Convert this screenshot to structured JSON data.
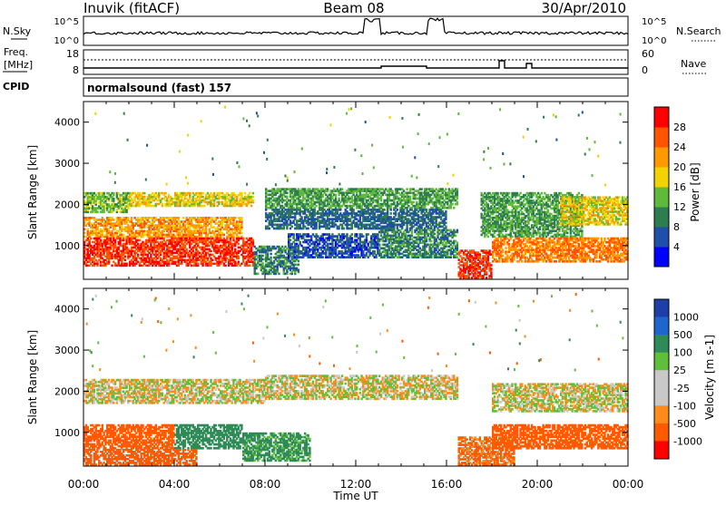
{
  "header": {
    "station": "Inuvik (fitACF)",
    "beam": "Beam 08",
    "date": "30/Apr/2010"
  },
  "params": {
    "nsky_label": "N.Sky",
    "nsky_ticks": [
      "10^5",
      "10^0"
    ],
    "nsearch_label": "N.Search",
    "nsearch_ticks": [
      "10^5",
      "10^0"
    ],
    "freq_label_1": "Freq.",
    "freq_label_2": "[MHz]",
    "freq_ticks": [
      "18",
      "8"
    ],
    "nave_label": "Nave",
    "nave_ticks": [
      "60",
      "0"
    ],
    "cpid_label": "CPID",
    "cpid_text": "normalsound (fast) 157"
  },
  "colors": {
    "power": [
      "#0000ff",
      "#1f4fa8",
      "#2e7d4f",
      "#5fba3c",
      "#f2d200",
      "#ff9900",
      "#ff5500",
      "#ff0000"
    ],
    "velocity": [
      "#ff0000",
      "#ff5a00",
      "#ff8c1a",
      "#c8c8c8",
      "#c8c8c8",
      "#5fbf3a",
      "#2e8b57",
      "#1f66cc",
      "#1e3fa8"
    ]
  },
  "chart_data": [
    {
      "type": "heatmap",
      "title": "",
      "xlabel": "Time UT",
      "ylabel": "Slant Range [km]",
      "x_ticks": [
        "00:00",
        "04:00",
        "08:00",
        "12:00",
        "16:00",
        "20:00",
        "00:00"
      ],
      "x_range_hours": [
        0,
        24
      ],
      "y_ticks": [
        1000,
        2000,
        3000,
        4000
      ],
      "ylim": [
        180,
        4500
      ],
      "colorbar_label": "Power [dB]",
      "colorbar_ticks": [
        "4",
        "8",
        "12",
        "16",
        "20",
        "24",
        "28"
      ],
      "colorbar_range": [
        0,
        32
      ],
      "regions": [
        {
          "t": [
            0,
            2.0
          ],
          "r": [
            1800,
            2300
          ],
          "v": 14
        },
        {
          "t": [
            2.0,
            7.5
          ],
          "r": [
            1950,
            2300
          ],
          "v": 18
        },
        {
          "t": [
            0,
            7.0
          ],
          "r": [
            1200,
            1700
          ],
          "v": 22
        },
        {
          "t": [
            0,
            7.5
          ],
          "r": [
            500,
            1200
          ],
          "v": 28
        },
        {
          "t": [
            7.5,
            9.5
          ],
          "r": [
            300,
            1000
          ],
          "v": 10
        },
        {
          "t": [
            8.0,
            16.5
          ],
          "r": [
            1900,
            2400
          ],
          "v": 12
        },
        {
          "t": [
            8.0,
            16.0
          ],
          "r": [
            1400,
            1900
          ],
          "v": 8
        },
        {
          "t": [
            9.0,
            13.0
          ],
          "r": [
            700,
            1300
          ],
          "v": 6
        },
        {
          "t": [
            13.0,
            16.5
          ],
          "r": [
            700,
            1400
          ],
          "v": 10
        },
        {
          "t": [
            16.5,
            18.0
          ],
          "r": [
            200,
            900
          ],
          "v": 28
        },
        {
          "t": [
            17.5,
            22.0
          ],
          "r": [
            1200,
            2300
          ],
          "v": 12
        },
        {
          "t": [
            18.0,
            24
          ],
          "r": [
            600,
            1200
          ],
          "v": 24
        },
        {
          "t": [
            21.0,
            24
          ],
          "r": [
            1500,
            2200
          ],
          "v": 18
        }
      ]
    },
    {
      "type": "heatmap",
      "title": "",
      "xlabel": "Time UT",
      "ylabel": "Slant Range [km]",
      "x_ticks": [
        "00:00",
        "04:00",
        "08:00",
        "12:00",
        "16:00",
        "20:00",
        "00:00"
      ],
      "x_range_hours": [
        0,
        24
      ],
      "y_ticks": [
        1000,
        2000,
        3000,
        4000
      ],
      "ylim": [
        180,
        4500
      ],
      "colorbar_label": "Velocity [m s-1]",
      "colorbar_ticks": [
        "1000",
        "500",
        "100",
        "25",
        "-25",
        "-100",
        "-500",
        "-1000"
      ],
      "regions": [
        {
          "t": [
            0,
            8.0
          ],
          "r": [
            1700,
            2300
          ],
          "v": 0
        },
        {
          "t": [
            0,
            4.0
          ],
          "r": [
            600,
            1200
          ],
          "v": -300
        },
        {
          "t": [
            4.0,
            7.0
          ],
          "r": [
            600,
            1200
          ],
          "v": 200
        },
        {
          "t": [
            0,
            5.0
          ],
          "r": [
            200,
            600
          ],
          "v": -200
        },
        {
          "t": [
            8.0,
            16.5
          ],
          "r": [
            1800,
            2400
          ],
          "v": 0
        },
        {
          "t": [
            7.0,
            10.0
          ],
          "r": [
            300,
            1000
          ],
          "v": 150
        },
        {
          "t": [
            16.5,
            19.0
          ],
          "r": [
            200,
            900
          ],
          "v": -150
        },
        {
          "t": [
            18.0,
            24
          ],
          "r": [
            600,
            1200
          ],
          "v": -400
        },
        {
          "t": [
            18.0,
            24
          ],
          "r": [
            1500,
            2200
          ],
          "v": 0
        }
      ]
    }
  ]
}
